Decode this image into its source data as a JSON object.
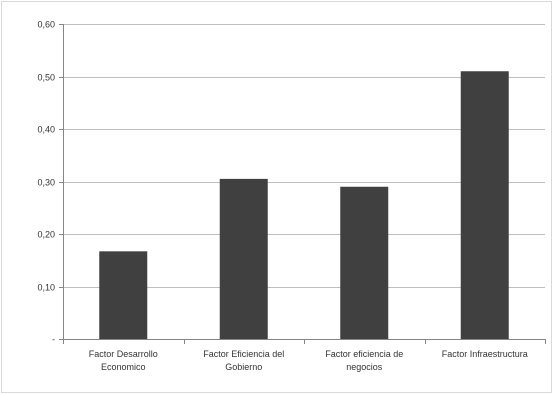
{
  "chart_data": {
    "type": "bar",
    "categories": [
      [
        "Factor Desarrollo",
        "Economico"
      ],
      [
        "Factor Eficiencia del",
        "Gobierno"
      ],
      [
        "Factor eficiencia de",
        "negocios"
      ],
      [
        "Factor Infraestructura"
      ]
    ],
    "values": [
      0.167,
      0.305,
      0.29,
      0.51
    ],
    "title": "",
    "xlabel": "",
    "ylabel": "",
    "ylim": [
      0,
      0.6
    ],
    "y_ticks": [
      0,
      0.1,
      0.2,
      0.3,
      0.4,
      0.5,
      0.6
    ],
    "y_tick_labels": [
      "-",
      "0,10",
      "0,20",
      "0,30",
      "0,40",
      "0,50",
      "0,60"
    ],
    "grid": true,
    "legend": "none",
    "colors": {
      "bar": "#404040",
      "grid": "#bfbfbf",
      "axis": "#868686"
    }
  }
}
